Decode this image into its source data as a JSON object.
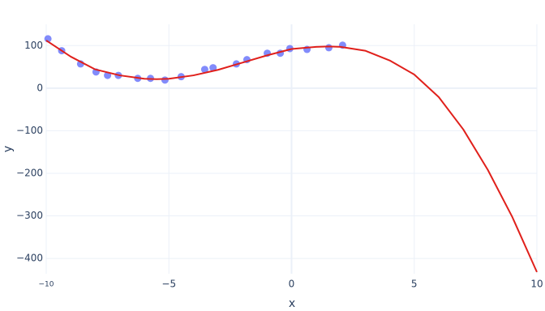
{
  "chart_data": {
    "type": "scatter",
    "x_label": "x",
    "y_label": "y",
    "xlim": [
      -10,
      10
    ],
    "ylim": [
      -436,
      150
    ],
    "xticks": [
      {
        "value": -10,
        "label": "−10"
      },
      {
        "value": -5,
        "label": "−5"
      },
      0,
      5,
      10
    ],
    "yticks": [
      {
        "value": -400,
        "label": "−400"
      },
      {
        "value": -300,
        "label": "−300"
      },
      {
        "value": -200,
        "label": "−200"
      },
      {
        "value": -100,
        "label": "−100"
      },
      0,
      100
    ],
    "grid": true,
    "series": [
      {
        "mode": "markers",
        "color": "#636efa",
        "x": [
          -9.93,
          -9.37,
          -8.6,
          -7.97,
          -7.5,
          -7.06,
          -6.27,
          -5.75,
          -5.16,
          -4.5,
          -3.54,
          -3.2,
          -2.25,
          -1.82,
          -0.99,
          -0.46,
          -0.07,
          0.63,
          1.52,
          2.08
        ],
        "values": [
          116,
          88,
          57,
          38,
          30,
          30,
          23,
          23,
          19,
          27,
          44,
          48,
          57,
          67,
          82,
          82,
          93,
          91,
          95,
          101
        ]
      },
      {
        "mode": "lines",
        "color": "#e0201b",
        "x": [
          -10,
          -9,
          -8,
          -7,
          -6,
          -5.5,
          -5,
          -4,
          -3,
          -2,
          -1,
          0,
          1,
          1.5,
          2,
          3,
          4,
          5,
          6,
          7,
          8,
          9,
          10
        ],
        "values": [
          112,
          74,
          44,
          30,
          22,
          21,
          22,
          30,
          43,
          60,
          77,
          92,
          97,
          98,
          97,
          88,
          65,
          32,
          -21,
          -97,
          -192,
          -303,
          -432
        ]
      }
    ]
  }
}
